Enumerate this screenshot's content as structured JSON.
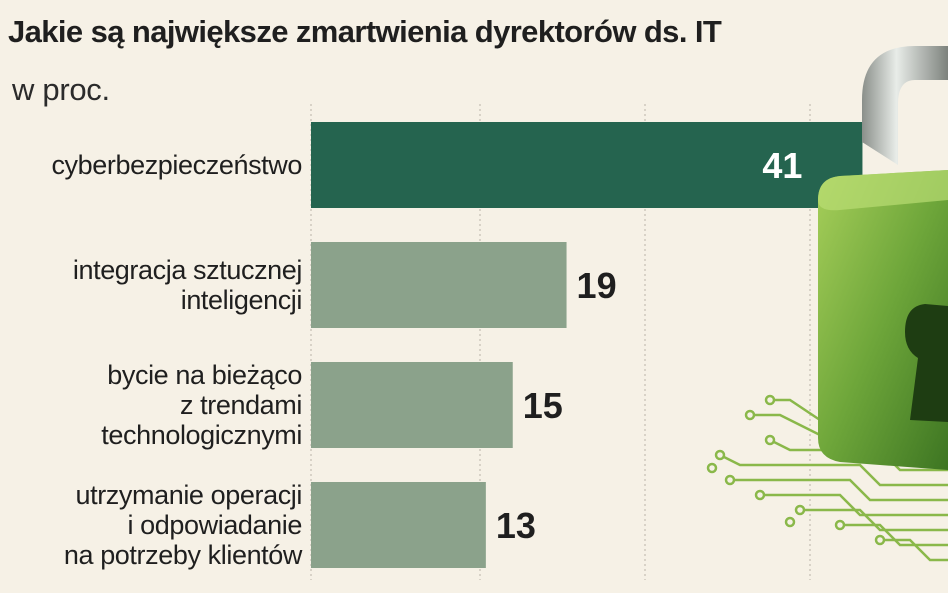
{
  "header": {
    "title": "Jakie są największe zmartwienia dyrektorów ds. IT",
    "subtitle": "w proc."
  },
  "colors": {
    "highlight_bar": "#25644f",
    "bar": "#8ba28b",
    "background": "#f6f1e6",
    "grid": "#b9b4a8",
    "lock_green": "#6ea63a"
  },
  "chart_data": {
    "type": "bar",
    "orientation": "horizontal",
    "categories": [
      [
        "cyberbezpieczeństwo"
      ],
      [
        "integracja sztucznej",
        "inteligencji"
      ],
      [
        "bycie na bieżąco",
        "z trendami",
        "technologicznymi"
      ],
      [
        "utrzymanie operacji",
        "i odpowiadanie",
        "na potrzeby klientów"
      ]
    ],
    "values": [
      41,
      19,
      15,
      13
    ],
    "data_labels": [
      "41",
      "19",
      "15",
      "13"
    ],
    "xlim": [
      0,
      50
    ],
    "grid": true,
    "decoration": "padlock-icon"
  }
}
